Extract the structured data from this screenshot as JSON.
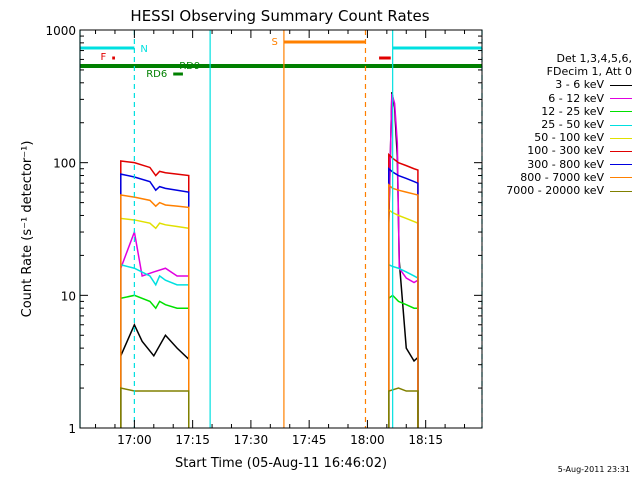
{
  "chart_data": {
    "type": "line",
    "title": "HESSI Observing Summary Count Rates",
    "xlabel": "Start Time (05-Aug-11 16:46:02)",
    "ylabel": "Count Rate (s⁻¹ detector⁻¹)",
    "x_unit": "minutes after 16:46:02 UT",
    "xlim": [
      0,
      103.5
    ],
    "ylim": [
      1,
      1000
    ],
    "yscale": "log",
    "x_ticks": [
      {
        "label": "17:00",
        "value": 14
      },
      {
        "label": "17:15",
        "value": 29
      },
      {
        "label": "17:30",
        "value": 44
      },
      {
        "label": "17:45",
        "value": 59
      },
      {
        "label": "18:00",
        "value": 74
      },
      {
        "label": "18:15",
        "value": 89
      }
    ],
    "y_ticks": [
      {
        "label": "1",
        "value": 1
      },
      {
        "label": "10",
        "value": 10
      },
      {
        "label": "100",
        "value": 100
      },
      {
        "label": "1000",
        "value": 1000
      }
    ],
    "legend_header": [
      "Det 1,3,4,5,6,",
      "FDecim 1, Att 0"
    ],
    "series": [
      {
        "name": "3 - 6 keV",
        "color": "#000000",
        "segments": [
          {
            "x": [
              10.5,
              14,
              16,
              19,
              22,
              25,
              28
            ],
            "y": [
              3.5,
              6,
              4.5,
              3.5,
              5,
              4,
              3.3
            ]
          },
          {
            "x": [
              79.5,
              80.3,
              81,
              81.7,
              82.2,
              84,
              86,
              87
            ],
            "y": [
              35,
              340,
              260,
              110,
              18,
              4,
              3.2,
              3.4
            ]
          }
        ]
      },
      {
        "name": "6 - 12 keV",
        "color": "#e000e0",
        "segments": [
          {
            "x": [
              10.5,
              14,
              16,
              19,
              22,
              25,
              28
            ],
            "y": [
              16,
              30,
              14,
              15,
              16,
              14,
              14
            ]
          },
          {
            "x": [
              79.5,
              80.3,
              81,
              81.7,
              82.2,
              84,
              86,
              87
            ],
            "y": [
              40,
              330,
              280,
              140,
              16,
              13.5,
              12.5,
              13
            ]
          }
        ]
      },
      {
        "name": "12 - 25 keV",
        "color": "#00e000",
        "segments": [
          {
            "x": [
              10.5,
              14,
              18,
              19.5,
              20.5,
              22,
              25,
              28
            ],
            "y": [
              9.5,
              10,
              9,
              8,
              9,
              8.5,
              8,
              8
            ]
          },
          {
            "x": [
              79.5,
              80.5,
              82,
              84,
              86,
              87
            ],
            "y": [
              9.5,
              10,
              9,
              8.5,
              8,
              8
            ]
          }
        ]
      },
      {
        "name": "25 - 50 keV",
        "color": "#00e0e0",
        "segments": [
          {
            "x": [
              10.5,
              14,
              18,
              19.5,
              20.5,
              22,
              25,
              28
            ],
            "y": [
              17,
              16,
              14,
              12,
              14,
              13,
              12,
              12
            ]
          },
          {
            "x": [
              79.5,
              80.5,
              82,
              84,
              86,
              87
            ],
            "y": [
              17,
              16.5,
              16,
              15,
              14,
              13.5
            ]
          }
        ]
      },
      {
        "name": "50 - 100 keV",
        "color": "#e0e000",
        "segments": [
          {
            "x": [
              10.5,
              14,
              18,
              19.5,
              20.5,
              22,
              25,
              28
            ],
            "y": [
              38,
              37,
              35,
              32,
              35,
              34,
              33,
              32
            ]
          },
          {
            "x": [
              79.5,
              80.5,
              82,
              84,
              86,
              87
            ],
            "y": [
              44,
              42,
              40,
              38,
              36,
              35
            ]
          }
        ]
      },
      {
        "name": "100 - 300 keV",
        "color": "#e00000",
        "segments": [
          {
            "x": [
              10.5,
              14,
              18,
              19.5,
              20.5,
              22,
              25,
              28
            ],
            "y": [
              103,
              100,
              92,
              80,
              86,
              84,
              82,
              80
            ]
          },
          {
            "x": [
              79.5,
              80.5,
              82,
              84,
              86,
              87
            ],
            "y": [
              115,
              108,
              100,
              95,
              90,
              88
            ]
          }
        ]
      },
      {
        "name": "300 - 800 keV",
        "color": "#0000e0",
        "segments": [
          {
            "x": [
              10.5,
              14,
              18,
              19.5,
              20.5,
              22,
              25,
              28
            ],
            "y": [
              82,
              78,
              72,
              62,
              66,
              64,
              62,
              60
            ]
          },
          {
            "x": [
              79.5,
              80.5,
              82,
              84,
              86,
              87
            ],
            "y": [
              90,
              85,
              80,
              76,
              72,
              70
            ]
          }
        ]
      },
      {
        "name": "800 - 7000 keV",
        "color": "#ff8000",
        "segments": [
          {
            "x": [
              10.5,
              14,
              18,
              19.5,
              20.5,
              22,
              25,
              28
            ],
            "y": [
              57,
              55,
              52,
              47,
              50,
              48,
              47,
              46
            ]
          },
          {
            "x": [
              79.5,
              80.5,
              82,
              84,
              86,
              87
            ],
            "y": [
              68,
              64,
              62,
              60,
              58,
              57
            ]
          }
        ]
      },
      {
        "name": "7000 - 20000 keV",
        "color": "#808000",
        "segments": [
          {
            "x": [
              10.5,
              14,
              18,
              22,
              25,
              28
            ],
            "y": [
              2,
              1.9,
              1.9,
              1.9,
              1.9,
              1.9
            ]
          },
          {
            "x": [
              79.5,
              82,
              84,
              86,
              87
            ],
            "y": [
              1.9,
              2,
              1.9,
              1.9,
              1.9
            ]
          }
        ]
      }
    ],
    "flags": [
      {
        "label": "N",
        "color": "#00e0e0",
        "x_ranges": [
          [
            0,
            14
          ],
          [
            80.5,
            103.5
          ]
        ]
      },
      {
        "label": "F",
        "color": "#e00000",
        "x_ranges": [
          [
            8.3,
            9
          ]
        ]
      },
      {
        "label": "RD9",
        "color": "#008000",
        "x_ranges": [
          [
            24,
            26
          ]
        ]
      },
      {
        "label": "RD6",
        "color": "#008000",
        "x_ranges": [
          [
            24,
            26.5
          ]
        ]
      },
      {
        "label": "S",
        "color": "#ff8000",
        "x_ranges": [
          [
            52.5,
            73.5
          ]
        ]
      },
      {
        "label": "",
        "color": "#e00000",
        "x_ranges": [
          [
            77,
            80
          ]
        ]
      },
      {
        "label": "",
        "color": "#008000",
        "x_ranges": [
          [
            0,
            103.5
          ]
        ]
      }
    ],
    "vertical_markers": [
      {
        "color": "#00e0e0",
        "style": "solid",
        "x": 0
      },
      {
        "color": "#00e0e0",
        "style": "dashed",
        "x": 14
      },
      {
        "color": "#00e0e0",
        "style": "solid",
        "x": 33.5
      },
      {
        "color": "#ff8000",
        "style": "solid",
        "x": 52.5
      },
      {
        "color": "#ff8000",
        "style": "dashed",
        "x": 73.5
      },
      {
        "color": "#00e0e0",
        "style": "solid",
        "x": 80.5
      },
      {
        "color": "#00e0e0",
        "style": "dashed",
        "x": 103.5
      }
    ],
    "grid": false,
    "legend_position": "right"
  },
  "stamp": "5-Aug-2011 23:31"
}
